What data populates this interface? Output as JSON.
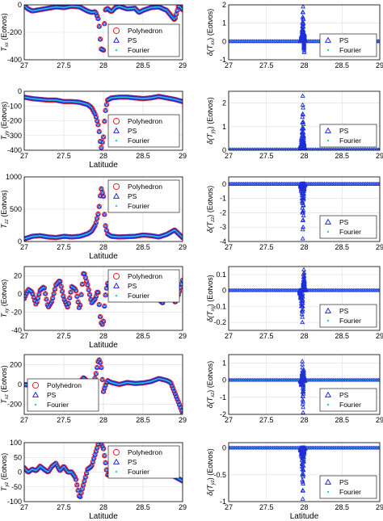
{
  "colors": {
    "polyhedron": "#e8202a",
    "ps": "#1f2fd8",
    "fourier": "#2ec7d6",
    "grid": "#dcdcdc",
    "axis": "#000000"
  },
  "chart_data": [
    {
      "type": "line",
      "ylabel": "T_xx (Eotvos)",
      "xlabel": "",
      "xlim": [
        27,
        29
      ],
      "ylim": [
        -400,
        0
      ],
      "xticks": [
        "27",
        "27.5",
        "28",
        "28.5",
        "29"
      ],
      "yticks": [
        "-400",
        "-200",
        "0"
      ],
      "legend": {
        "position": "bottom-right",
        "entries": [
          "Polyhedron",
          "PS",
          "Fourier"
        ]
      },
      "series": [
        {
          "name": "Polyhedron",
          "marker": "circle",
          "x": [
            27,
            27.05,
            27.1,
            27.2,
            27.3,
            27.4,
            27.5,
            27.6,
            27.7,
            27.8,
            27.85,
            27.9,
            27.94,
            27.97,
            28.0,
            28.02,
            28.05,
            28.1,
            28.15,
            28.2,
            28.3,
            28.4,
            28.45,
            28.5,
            28.6,
            28.7,
            28.8,
            28.9,
            28.95,
            29.0
          ],
          "y": [
            -5,
            -30,
            -45,
            -35,
            -25,
            -15,
            -20,
            -10,
            -15,
            -45,
            -55,
            -50,
            -110,
            -320,
            -330,
            -40,
            -25,
            -50,
            -20,
            -10,
            -30,
            -25,
            -55,
            -40,
            -20,
            -15,
            -40,
            -110,
            -5,
            -35
          ]
        },
        {
          "name": "PS",
          "marker": "triangle",
          "same_as": "Polyhedron"
        },
        {
          "name": "Fourier",
          "marker": "dot",
          "same_as": "Polyhedron"
        }
      ]
    },
    {
      "type": "line",
      "ylabel": "T_yy (Eotvos)",
      "xlabel": "Latitude",
      "xlim": [
        27,
        29
      ],
      "ylim": [
        -400,
        0
      ],
      "xticks": [
        "27",
        "27.5",
        "28",
        "28.5",
        "29"
      ],
      "yticks": [
        "-400",
        "-300",
        "-200",
        "-100",
        "0"
      ],
      "legend": {
        "position": "bottom-right",
        "entries": [
          "Polyhedron",
          "PS",
          "Fourier"
        ]
      },
      "series": [
        {
          "name": "Polyhedron",
          "marker": "circle",
          "x": [
            27,
            27.1,
            27.2,
            27.3,
            27.4,
            27.5,
            27.6,
            27.7,
            27.8,
            27.85,
            27.9,
            27.94,
            27.97,
            28.0,
            28.02,
            28.05,
            28.1,
            28.2,
            28.3,
            28.4,
            28.5,
            28.6,
            28.7,
            28.8,
            28.9,
            29.0
          ],
          "y": [
            -40,
            -50,
            -55,
            -60,
            -60,
            -70,
            -70,
            -75,
            -90,
            -110,
            -160,
            -240,
            -390,
            -310,
            -150,
            -60,
            -45,
            -40,
            -40,
            -45,
            -50,
            -45,
            -35,
            -45,
            -55,
            -70
          ]
        },
        {
          "name": "PS",
          "marker": "triangle",
          "same_as": "Polyhedron"
        },
        {
          "name": "Fourier",
          "marker": "dot",
          "same_as": "Polyhedron"
        }
      ]
    },
    {
      "type": "line",
      "ylabel": "T_zz (Eotvos)",
      "xlabel": "Latitude",
      "xlim": [
        27,
        29
      ],
      "ylim": [
        0,
        1000
      ],
      "xticks": [
        "27",
        "27.5",
        "28",
        "28.5",
        "29"
      ],
      "yticks": [
        "0",
        "500",
        "1000"
      ],
      "legend": {
        "position": "top-right",
        "entries": [
          "Polyhedron",
          "PS",
          "Fourier"
        ]
      },
      "series": [
        {
          "name": "Polyhedron",
          "marker": "circle",
          "x": [
            27,
            27.1,
            27.2,
            27.3,
            27.4,
            27.5,
            27.6,
            27.7,
            27.8,
            27.85,
            27.9,
            27.94,
            27.97,
            28.0,
            28.02,
            28.05,
            28.1,
            28.2,
            28.3,
            28.4,
            28.5,
            28.6,
            28.7,
            28.8,
            28.9,
            29.0
          ],
          "y": [
            40,
            80,
            90,
            70,
            60,
            80,
            70,
            80,
            120,
            160,
            260,
            460,
            830,
            700,
            280,
            120,
            80,
            70,
            75,
            80,
            100,
            90,
            70,
            110,
            180,
            60
          ]
        },
        {
          "name": "PS",
          "marker": "triangle",
          "same_as": "Polyhedron"
        },
        {
          "name": "Fourier",
          "marker": "dot",
          "same_as": "Polyhedron"
        }
      ]
    },
    {
      "type": "line",
      "ylabel": "T_xy (Eotvos)",
      "xlabel": "Latitude",
      "xlim": [
        27,
        29
      ],
      "ylim": [
        -40,
        30
      ],
      "xticks": [
        "27",
        "27.5",
        "28",
        "28.5",
        "29"
      ],
      "yticks": [
        "-40",
        "-20",
        "0",
        "20"
      ],
      "legend": {
        "position": "top-right",
        "entries": [
          "Polyhedron",
          "PS",
          "Fourier"
        ]
      },
      "series": [
        {
          "name": "Polyhedron",
          "marker": "circle",
          "x": [
            27,
            27.05,
            27.1,
            27.15,
            27.2,
            27.25,
            27.3,
            27.35,
            27.4,
            27.45,
            27.5,
            27.55,
            27.6,
            27.65,
            27.7,
            27.75,
            27.8,
            27.85,
            27.9,
            27.93,
            27.96,
            27.98,
            28.0,
            28.02,
            28.05,
            28.1,
            28.15,
            28.2,
            28.25,
            28.3,
            28.35,
            28.4,
            28.45,
            28.5,
            28.55,
            28.6,
            28.65,
            28.7,
            28.75,
            28.8,
            28.85,
            28.9,
            28.95,
            29.0
          ],
          "y": [
            -5,
            5,
            2,
            -12,
            4,
            8,
            -15,
            -8,
            10,
            15,
            -5,
            -15,
            8,
            5,
            -18,
            25,
            10,
            -10,
            -5,
            5,
            -25,
            -35,
            -30,
            -5,
            12,
            5,
            -5,
            10,
            5,
            15,
            8,
            3,
            14,
            6,
            4,
            8,
            0,
            -6,
            -10,
            12,
            12,
            -10,
            0,
            15
          ]
        },
        {
          "name": "PS",
          "marker": "triangle",
          "same_as": "Polyhedron"
        },
        {
          "name": "Fourier",
          "marker": "dot",
          "same_as": "Polyhedron"
        }
      ]
    },
    {
      "type": "line",
      "ylabel": "T_xz (Eotvos)",
      "xlabel": "",
      "xlim": [
        27,
        29
      ],
      "ylim": [
        -300,
        300
      ],
      "xticks": [
        "27",
        "27.5",
        "28",
        "28.5",
        "29"
      ],
      "yticks": [
        "-200",
        "0",
        "200"
      ],
      "legend": {
        "position": "bottom-left",
        "entries": [
          "Polyhedron",
          "PS",
          "Fourier"
        ]
      },
      "series": [
        {
          "name": "Polyhedron",
          "marker": "circle",
          "x": [
            27,
            27.1,
            27.2,
            27.3,
            27.4,
            27.5,
            27.6,
            27.7,
            27.75,
            27.8,
            27.85,
            27.9,
            27.94,
            27.97,
            28.0,
            28.02,
            28.05,
            28.1,
            28.2,
            28.3,
            28.4,
            28.5,
            28.6,
            28.7,
            28.8,
            28.85,
            28.9,
            28.95,
            29.0
          ],
          "y": [
            0,
            -10,
            0,
            10,
            0,
            5,
            0,
            20,
            70,
            30,
            -40,
            80,
            260,
            200,
            -70,
            -20,
            40,
            20,
            0,
            20,
            10,
            15,
            30,
            60,
            40,
            20,
            -80,
            -180,
            -290
          ]
        },
        {
          "name": "PS",
          "marker": "triangle",
          "same_as": "Polyhedron"
        },
        {
          "name": "Fourier",
          "marker": "dot",
          "same_as": "Polyhedron"
        }
      ]
    },
    {
      "type": "line",
      "ylabel": "T_yz (Eotvos)",
      "xlabel": "Latitude",
      "xlim": [
        27,
        29
      ],
      "ylim": [
        -100,
        100
      ],
      "xticks": [
        "27",
        "27.5",
        "28",
        "28.5",
        "29"
      ],
      "yticks": [
        "-100",
        "-50",
        "0",
        "50",
        "100"
      ],
      "legend": {
        "position": "top-right",
        "entries": [
          "Polyhedron",
          "PS",
          "Fourier"
        ]
      },
      "series": [
        {
          "name": "Polyhedron",
          "marker": "circle",
          "x": [
            27,
            27.05,
            27.1,
            27.15,
            27.2,
            27.25,
            27.3,
            27.35,
            27.4,
            27.45,
            27.5,
            27.55,
            27.6,
            27.65,
            27.7,
            27.75,
            27.8,
            27.85,
            27.9,
            27.95,
            28.0,
            28.05,
            28.1,
            28.15,
            28.2,
            28.25,
            28.3,
            28.35,
            28.4,
            28.5,
            28.6,
            28.7,
            28.8,
            28.9,
            29.0
          ],
          "y": [
            15,
            0,
            10,
            5,
            20,
            10,
            0,
            20,
            30,
            5,
            20,
            0,
            0,
            -20,
            -90,
            -40,
            10,
            20,
            65,
            110,
            80,
            -10,
            0,
            20,
            5,
            10,
            0,
            30,
            20,
            10,
            5,
            10,
            0,
            -15,
            -30
          ]
        },
        {
          "name": "PS",
          "marker": "triangle",
          "same_as": "Polyhedron"
        },
        {
          "name": "Fourier",
          "marker": "dot",
          "same_as": "Polyhedron"
        }
      ]
    },
    {
      "type": "scatter",
      "ylabel": "δ(T_xx) (Eotvos)",
      "xlabel": "",
      "xlim": [
        27,
        29
      ],
      "ylim": [
        -1,
        2
      ],
      "xticks": [
        "27",
        "27.5",
        "28",
        "28.5",
        "29"
      ],
      "yticks": [
        "-1",
        "0",
        "1",
        "2"
      ],
      "legend": {
        "position": "bottom-right",
        "entries": [
          "PS",
          "Fourier"
        ]
      },
      "series": [
        {
          "name": "PS",
          "marker": "triangle",
          "x": [
            27.95,
            27.96,
            27.97,
            27.975,
            27.98,
            27.985,
            27.99,
            27.995,
            28.0,
            28.005,
            28.01
          ],
          "y": [
            0.1,
            0.3,
            0.6,
            1.0,
            1.6,
            1.9,
            1.2,
            -0.4,
            -0.6,
            0.4,
            0.1
          ],
          "baseline": 0.0
        },
        {
          "name": "Fourier",
          "marker": "dot",
          "baseline": 0.0
        }
      ]
    },
    {
      "type": "scatter",
      "ylabel": "δ(T_yy) (Eotvos)",
      "xlabel": "",
      "xlim": [
        27,
        29
      ],
      "ylim": [
        0,
        2.5
      ],
      "xticks": [
        "27",
        "27.5",
        "28",
        "28.5",
        "29"
      ],
      "yticks": [
        "0",
        "1",
        "2"
      ],
      "legend": {
        "position": "bottom-right",
        "entries": [
          "PS",
          "Fourier"
        ]
      },
      "series": [
        {
          "name": "PS",
          "marker": "triangle",
          "x": [
            27.95,
            27.96,
            27.97,
            27.975,
            27.98,
            27.985,
            27.99,
            27.995,
            28.0,
            28.01
          ],
          "y": [
            0.2,
            0.5,
            0.9,
            1.4,
            2.3,
            1.8,
            1.1,
            0.6,
            0.3,
            0.1
          ],
          "baseline": 0.02
        },
        {
          "name": "Fourier",
          "marker": "dot",
          "baseline": 0.01
        }
      ]
    },
    {
      "type": "scatter",
      "ylabel": "δ(T_zz) (Eotvos)",
      "xlabel": "",
      "xlim": [
        27,
        29
      ],
      "ylim": [
        -4,
        0.5
      ],
      "xticks": [
        "27",
        "27.5",
        "28",
        "28.5",
        "29"
      ],
      "yticks": [
        "-4",
        "-3",
        "-2",
        "-1",
        "0"
      ],
      "legend": {
        "position": "bottom-right",
        "entries": [
          "PS",
          "Fourier"
        ]
      },
      "series": [
        {
          "name": "PS",
          "marker": "triangle",
          "x": [
            27.95,
            27.96,
            27.97,
            27.975,
            27.98,
            27.985,
            27.99,
            27.995,
            28.0,
            28.01
          ],
          "y": [
            -0.2,
            -0.5,
            -1.2,
            -2.0,
            -3.8,
            -3.0,
            -2.2,
            -1.0,
            -0.4,
            -0.1
          ],
          "baseline": 0.0
        },
        {
          "name": "Fourier",
          "marker": "dot",
          "baseline": 0.0
        }
      ]
    },
    {
      "type": "scatter",
      "ylabel": "δ(T_xy) (Eotvos)",
      "xlabel": "",
      "xlim": [
        27,
        29
      ],
      "ylim": [
        -0.25,
        0.15
      ],
      "xticks": [
        "27",
        "27.5",
        "28",
        "28.5",
        "29"
      ],
      "yticks": [
        "-0.2",
        "-0.1",
        "0",
        "0.1"
      ],
      "legend": {
        "position": "bottom-right",
        "entries": [
          "PS",
          "Fourier"
        ]
      },
      "series": [
        {
          "name": "PS",
          "marker": "triangle",
          "x": [
            27.94,
            27.95,
            27.96,
            27.97,
            27.975,
            27.98,
            27.985,
            27.99,
            27.995,
            28.0,
            28.005,
            28.01,
            28.02
          ],
          "y": [
            -0.02,
            -0.05,
            -0.1,
            -0.15,
            -0.2,
            -0.12,
            0.05,
            0.1,
            0.13,
            0.11,
            0.06,
            0.02,
            0.01
          ],
          "baseline": 0.0
        },
        {
          "name": "Fourier",
          "marker": "dot",
          "baseline": 0.0
        }
      ]
    },
    {
      "type": "scatter",
      "ylabel": "δ(T_xz) (Eotvos)",
      "xlabel": "",
      "xlim": [
        27,
        29
      ],
      "ylim": [
        -2,
        1.5
      ],
      "xticks": [
        "27",
        "27.5",
        "28",
        "28.5",
        "29"
      ],
      "yticks": [
        "-2",
        "-1",
        "0",
        "1"
      ],
      "legend": {
        "position": "bottom-right",
        "entries": [
          "PS",
          "Fourier"
        ]
      },
      "series": [
        {
          "name": "PS",
          "marker": "triangle",
          "x": [
            27.95,
            27.96,
            27.97,
            27.975,
            27.98,
            27.985,
            27.99,
            27.995,
            28.0,
            28.01
          ],
          "y": [
            -0.1,
            -0.3,
            0.4,
            1.1,
            -1.4,
            -1.9,
            -0.8,
            0.6,
            0.2,
            -0.05
          ],
          "baseline": 0.0
        },
        {
          "name": "Fourier",
          "marker": "dot",
          "baseline": 0.0
        }
      ]
    },
    {
      "type": "scatter",
      "ylabel": "δ(T_yz) (Eotvos)",
      "xlabel": "Latitude",
      "xlim": [
        27,
        29
      ],
      "ylim": [
        -1,
        0.1
      ],
      "xticks": [
        "27",
        "27.5",
        "28",
        "28.5",
        "29"
      ],
      "yticks": [
        "-1",
        "-0.5",
        "0"
      ],
      "legend": {
        "position": "bottom-right",
        "entries": [
          "PS",
          "Fourier"
        ]
      },
      "series": [
        {
          "name": "PS",
          "marker": "triangle",
          "x": [
            27.95,
            27.96,
            27.97,
            27.975,
            27.98,
            27.985,
            27.99,
            27.995,
            28.0,
            28.01
          ],
          "y": [
            -0.05,
            -0.15,
            -0.35,
            -0.6,
            -0.95,
            -0.8,
            -0.5,
            -0.25,
            -0.1,
            -0.02
          ],
          "baseline": 0.0
        },
        {
          "name": "Fourier",
          "marker": "dot",
          "baseline": 0.0
        }
      ]
    }
  ]
}
